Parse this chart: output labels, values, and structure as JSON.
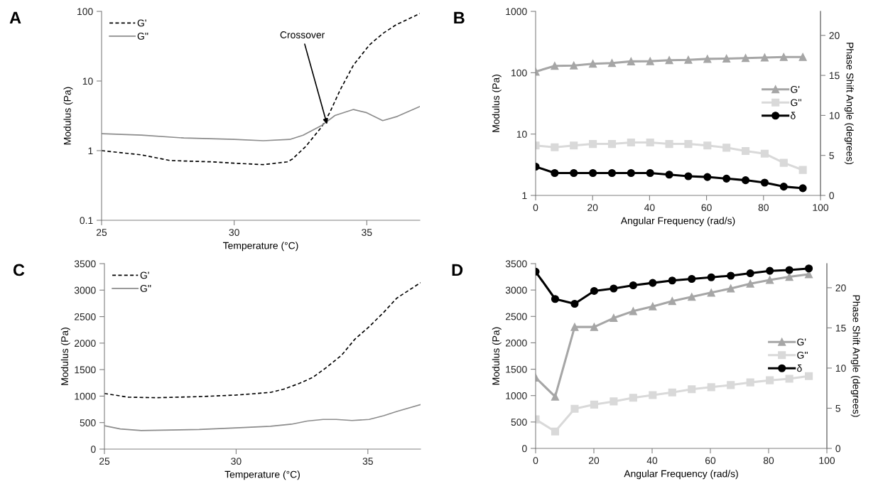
{
  "chart_data": [
    {
      "type": "line",
      "title": "A",
      "xlabel": "Temperature (°C)",
      "ylabel": "Modulus (Pa)",
      "log": "y",
      "xlim": [
        25,
        37
      ],
      "xticks": [
        25,
        30,
        35
      ],
      "ylim": [
        0.1,
        100
      ],
      "yticks": [
        0.1,
        1,
        10,
        100
      ],
      "legend": "top left",
      "annotations": [
        {
          "text": "Crossover",
          "x": 33.5,
          "y": 2.4
        }
      ],
      "series": [
        {
          "name": "G'",
          "color": "#000000",
          "line_style": "dashed",
          "x": [
            25,
            26.5,
            27.6,
            29.2,
            30,
            31.1,
            32.0,
            32.2,
            32.7,
            33.3,
            33.6,
            34.0,
            34.5,
            35.1,
            35.6,
            36.1,
            37
          ],
          "values": [
            1.0,
            0.87,
            0.72,
            0.69,
            0.66,
            0.63,
            0.69,
            0.76,
            1.15,
            2.2,
            3.5,
            7.5,
            17,
            33,
            48,
            64,
            93
          ]
        },
        {
          "name": "G''",
          "color": "#8c8c8c",
          "line_style": "solid",
          "x": [
            25,
            26.5,
            28.1,
            30,
            31.1,
            32.1,
            32.6,
            33.3,
            33.8,
            34.5,
            35.0,
            35.6,
            36.15,
            37
          ],
          "values": [
            1.75,
            1.67,
            1.52,
            1.45,
            1.39,
            1.45,
            1.67,
            2.3,
            3.2,
            3.9,
            3.5,
            2.7,
            3.1,
            4.3
          ]
        }
      ]
    },
    {
      "type": "line",
      "title": "B",
      "xlabel": "Angular Frequency (rad/s)",
      "ylabel": "Modulus (Pa)",
      "y2label": "Phase Shift Angle (degrees)",
      "log": "y",
      "xlim": [
        0,
        100
      ],
      "xticks": [
        0,
        20,
        40,
        60,
        80,
        100
      ],
      "ylim": [
        1,
        1000
      ],
      "yticks": [
        1,
        10,
        100,
        1000
      ],
      "y2lim": [
        0,
        23
      ],
      "y2ticks": [
        0,
        5,
        10,
        15,
        20
      ],
      "legend": "right",
      "x": [
        0,
        6.7,
        13.4,
        20.1,
        26.8,
        33.5,
        40.2,
        46.9,
        53.6,
        60.3,
        67,
        73.7,
        80.4,
        87.1,
        93.8
      ],
      "series": [
        {
          "name": "G'",
          "color": "#a6a6a6",
          "marker": "triangle",
          "values": [
            104,
            129,
            131,
            140,
            144,
            153,
            154,
            160,
            162,
            168,
            170,
            173,
            177,
            180,
            180
          ]
        },
        {
          "name": "G''",
          "color": "#d9d9d9",
          "marker": "square",
          "values": [
            6.5,
            6.1,
            6.5,
            6.9,
            6.9,
            7.3,
            7.3,
            6.9,
            6.9,
            6.5,
            6.0,
            5.3,
            4.8,
            3.4,
            2.6
          ]
        },
        {
          "name": "δ",
          "color": "#000000",
          "marker": "circle",
          "axis": "y2",
          "values": [
            3.6,
            2.8,
            2.8,
            2.8,
            2.8,
            2.8,
            2.8,
            2.6,
            2.4,
            2.3,
            2.1,
            1.9,
            1.6,
            1.1,
            0.9
          ]
        }
      ]
    },
    {
      "type": "line",
      "title": "C",
      "xlabel": "Temperature (°C)",
      "ylabel": "Modulus (Pa)",
      "xlim": [
        25,
        37
      ],
      "xticks": [
        25,
        30,
        35
      ],
      "ylim": [
        0,
        3500
      ],
      "yticks": [
        0,
        500,
        1000,
        1500,
        2000,
        2500,
        3000,
        3500
      ],
      "legend": "top left",
      "series": [
        {
          "name": "G'",
          "color": "#000000",
          "line_style": "dashed",
          "x": [
            25,
            25.9,
            27.0,
            28.6,
            30,
            31.3,
            31.8,
            32.4,
            32.9,
            33.4,
            34.0,
            34.5,
            35.05,
            35.6,
            36.1,
            37
          ],
          "values": [
            1050,
            980,
            970,
            990,
            1020,
            1070,
            1130,
            1240,
            1350,
            1530,
            1770,
            2070,
            2310,
            2580,
            2850,
            3140
          ]
        },
        {
          "name": "G''",
          "color": "#8c8c8c",
          "line_style": "solid",
          "x": [
            25,
            25.6,
            26.4,
            28.6,
            30,
            31.3,
            32.1,
            32.7,
            33.3,
            33.8,
            34.4,
            35.05,
            35.6,
            36.1,
            37
          ],
          "values": [
            440,
            380,
            350,
            370,
            400,
            430,
            470,
            530,
            560,
            560,
            540,
            560,
            630,
            710,
            840
          ]
        }
      ]
    },
    {
      "type": "line",
      "title": "D",
      "xlabel": "Angular Frequency (rad/s)",
      "ylabel": "Modulus (Pa)",
      "y2label": "Phase Shift Angle (degrees)",
      "xlim": [
        0,
        100
      ],
      "xticks": [
        0,
        20,
        40,
        60,
        80,
        100
      ],
      "ylim": [
        0,
        3500
      ],
      "yticks": [
        0,
        500,
        1000,
        1500,
        2000,
        2500,
        3000,
        3500
      ],
      "y2lim": [
        0,
        23
      ],
      "y2ticks": [
        0,
        5,
        10,
        15,
        20
      ],
      "legend": "right",
      "x": [
        0,
        6.7,
        13.4,
        20.1,
        26.8,
        33.5,
        40.2,
        46.9,
        53.6,
        60.3,
        67,
        73.7,
        80.4,
        87.1,
        93.8
      ],
      "series": [
        {
          "name": "G'",
          "color": "#a6a6a6",
          "marker": "triangle",
          "values": [
            1340,
            980,
            2300,
            2300,
            2470,
            2600,
            2690,
            2790,
            2870,
            2950,
            3030,
            3120,
            3190,
            3250,
            3300
          ]
        },
        {
          "name": "G''",
          "color": "#d9d9d9",
          "marker": "square",
          "values": [
            550,
            320,
            750,
            830,
            890,
            960,
            1010,
            1060,
            1120,
            1160,
            1200,
            1250,
            1290,
            1320,
            1370
          ]
        },
        {
          "name": "δ",
          "color": "#000000",
          "marker": "circle",
          "axis": "y2",
          "values": [
            22.0,
            18.6,
            18.0,
            19.6,
            19.9,
            20.3,
            20.6,
            20.9,
            21.1,
            21.3,
            21.5,
            21.8,
            22.1,
            22.2,
            22.4
          ]
        }
      ]
    }
  ]
}
